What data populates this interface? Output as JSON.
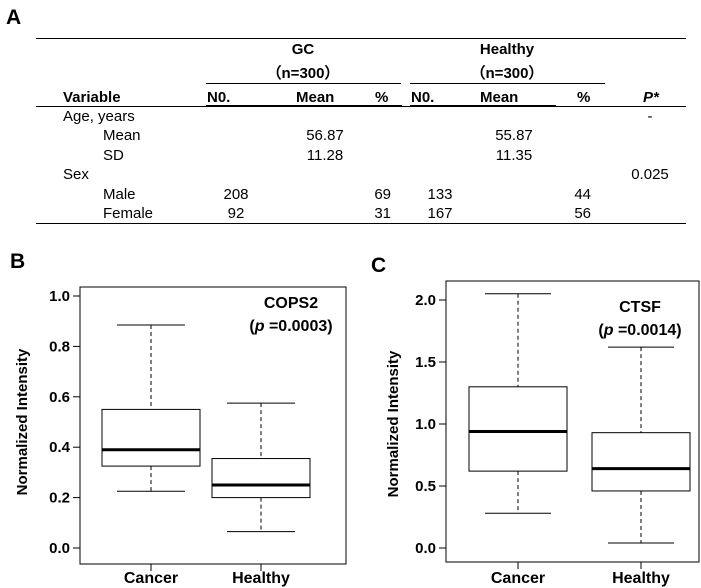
{
  "panel_a": {
    "label": "A",
    "groups": [
      {
        "name": "GC",
        "n": "（n=300）"
      },
      {
        "name": "Healthy",
        "n": "（n=300）"
      }
    ],
    "headers": [
      "Variable",
      "N0.",
      "Mean",
      "%",
      "N0.",
      "Mean",
      "%",
      "P*"
    ],
    "rows": [
      {
        "variable": "Age, years",
        "gc_no": "",
        "gc_mean": "",
        "gc_pct": "",
        "h_no": "",
        "h_mean": "",
        "h_pct": "",
        "p": "-"
      },
      {
        "variable": "Mean",
        "gc_no": "",
        "gc_mean": "56.87",
        "gc_pct": "",
        "h_no": "",
        "h_mean": "55.87",
        "h_pct": "",
        "p": ""
      },
      {
        "variable": "SD",
        "gc_no": "",
        "gc_mean": "11.28",
        "gc_pct": "",
        "h_no": "",
        "h_mean": "11.35",
        "h_pct": "",
        "p": ""
      },
      {
        "variable": "Sex",
        "gc_no": "",
        "gc_mean": "",
        "gc_pct": "",
        "h_no": "",
        "h_mean": "",
        "h_pct": "",
        "p": "0.025"
      },
      {
        "variable": "Male",
        "gc_no": "208",
        "gc_mean": "",
        "gc_pct": "69",
        "h_no": "133",
        "h_mean": "",
        "h_pct": "44",
        "p": ""
      },
      {
        "variable": "Female",
        "gc_no": "92",
        "gc_mean": "",
        "gc_pct": "31",
        "h_no": "167",
        "h_mean": "",
        "h_pct": "56",
        "p": ""
      }
    ]
  },
  "chart_data": [
    {
      "panel": "B",
      "type": "box",
      "annotation_title": "COPS2",
      "annotation_p_prefix": "(",
      "annotation_p_symbol": "p",
      "annotation_p_value": " =0.0003)",
      "ylabel": "Normalized Intensity",
      "ylim": [
        0.0,
        1.0
      ],
      "yticks": [
        "0.0",
        "0.2",
        "0.4",
        "0.6",
        "0.8",
        "1.0"
      ],
      "ytick_values": [
        0.0,
        0.2,
        0.4,
        0.6,
        0.8,
        1.0
      ],
      "categories": [
        "Cancer",
        "Healthy"
      ],
      "boxes": [
        {
          "min": 0.225,
          "q1": 0.325,
          "median": 0.39,
          "q3": 0.55,
          "max": 0.885
        },
        {
          "min": 0.065,
          "q1": 0.2,
          "median": 0.25,
          "q3": 0.355,
          "max": 0.575
        }
      ]
    },
    {
      "panel": "C",
      "type": "box",
      "annotation_title": "CTSF",
      "annotation_p_prefix": "(",
      "annotation_p_symbol": "p",
      "annotation_p_value": " =0.0014)",
      "ylabel": "Normalized Intensity",
      "ylim": [
        0.0,
        2.0
      ],
      "yticks": [
        "0.0",
        "0.5",
        "1.0",
        "1.5",
        "2.0"
      ],
      "ytick_values": [
        0.0,
        0.5,
        1.0,
        1.5,
        2.0
      ],
      "categories": [
        "Cancer",
        "Healthy"
      ],
      "boxes": [
        {
          "min": 0.28,
          "q1": 0.62,
          "median": 0.94,
          "q3": 1.3,
          "max": 2.05
        },
        {
          "min": 0.04,
          "q1": 0.46,
          "median": 0.64,
          "q3": 0.93,
          "max": 1.62
        }
      ]
    }
  ]
}
